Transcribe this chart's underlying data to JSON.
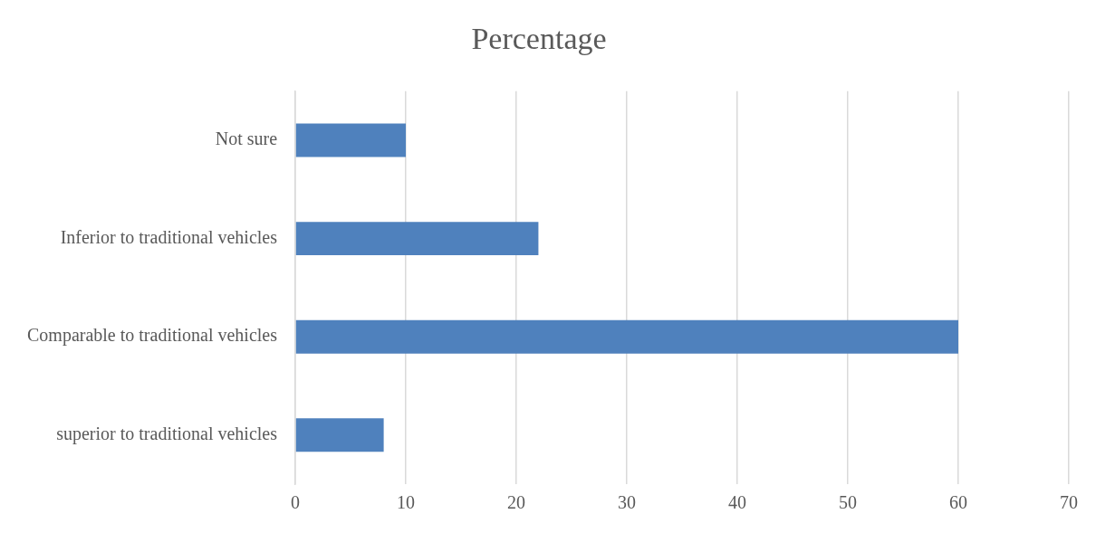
{
  "chart_data": {
    "type": "bar",
    "orientation": "horizontal",
    "title": "Percentage",
    "categories": [
      "Not sure",
      "Inferior to traditional vehicles",
      "Comparable to traditional vehicles",
      "superior to traditional vehicles"
    ],
    "values": [
      10,
      22,
      60,
      8
    ],
    "color": "#4f81bd",
    "xlim": [
      0,
      70
    ],
    "xticks": [
      0,
      10,
      20,
      30,
      40,
      50,
      60,
      70
    ],
    "grid": "x",
    "legend": false
  }
}
